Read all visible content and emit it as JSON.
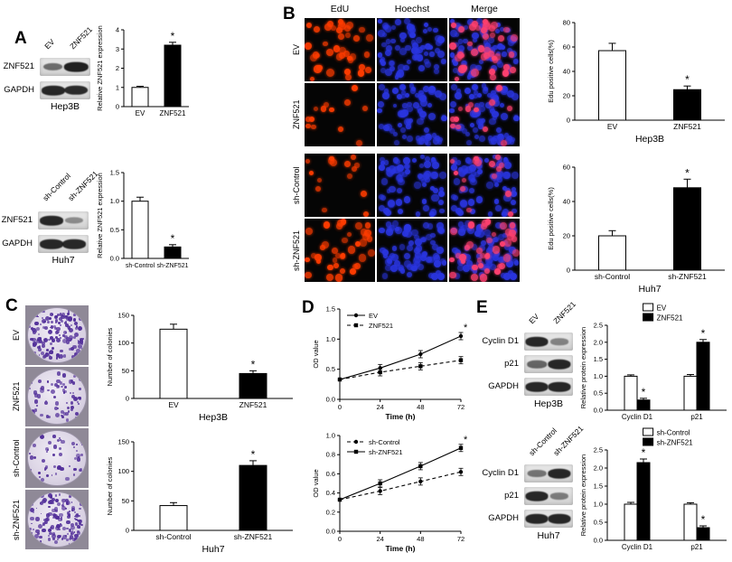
{
  "panelA": {
    "label": "A",
    "groups": [
      {
        "col_labels": [
          "EV",
          "ZNF521"
        ],
        "rows": [
          {
            "label": "ZNF521",
            "bands": [
              0.45,
              0.95
            ]
          },
          {
            "label": "GAPDH",
            "bands": [
              0.9,
              0.88
            ]
          }
        ],
        "cell_line": "Hep3B"
      },
      {
        "col_labels": [
          "sh-Control",
          "sh-ZNF521"
        ],
        "rows": [
          {
            "label": "ZNF521",
            "bands": [
              0.9,
              0.25
            ]
          },
          {
            "label": "GAPDH",
            "bands": [
              0.9,
              0.9
            ]
          }
        ],
        "cell_line": "Huh7"
      }
    ]
  },
  "panelB": {
    "label": "B",
    "col_headers": [
      "EdU",
      "Hoechst",
      "Merge"
    ],
    "edu_color": "#ff3c00",
    "hoechst_color": "#2a35e0",
    "merge_positive_color": "#ff4070",
    "rows": [
      {
        "label": "EV",
        "edu_count": 40,
        "hoechst_count": 70
      },
      {
        "label": "ZNF521",
        "edu_count": 13,
        "hoechst_count": 72
      },
      {
        "label": "sh-Control",
        "edu_count": 15,
        "hoechst_count": 70
      },
      {
        "label": "sh-ZNF521",
        "edu_count": 38,
        "hoechst_count": 74
      }
    ]
  },
  "panelC": {
    "label": "C",
    "colony_color": "#53309a",
    "dishes": [
      {
        "label": "EV",
        "colony_density": 170
      },
      {
        "label": "ZNF521",
        "colony_density": 75
      },
      {
        "label": "sh-Control",
        "colony_density": 55
      },
      {
        "label": "sh-ZNF521",
        "colony_density": 150
      }
    ]
  },
  "panelD": {
    "label": "D"
  },
  "panelE": {
    "label": "E",
    "groups": [
      {
        "col_labels": [
          "EV",
          "ZNF521"
        ],
        "rows": [
          {
            "label": "Cyclin D1",
            "bands": [
              0.9,
              0.3
            ]
          },
          {
            "label": "p21",
            "bands": [
              0.5,
              0.92
            ]
          },
          {
            "label": "GAPDH",
            "bands": [
              0.9,
              0.9
            ]
          }
        ],
        "cell_line": "Hep3B"
      },
      {
        "col_labels": [
          "sh-Control",
          "sh-ZNF521"
        ],
        "rows": [
          {
            "label": "Cyclin D1",
            "bands": [
              0.4,
              0.92
            ]
          },
          {
            "label": "p21",
            "bands": [
              0.9,
              0.35
            ]
          },
          {
            "label": "GAPDH",
            "bands": [
              0.9,
              0.9
            ]
          }
        ],
        "cell_line": "Huh7"
      }
    ]
  },
  "chart_data": [
    {
      "id": "a_top",
      "type": "bar",
      "categories": [
        "EV",
        "ZNF521"
      ],
      "values": [
        1.0,
        3.2
      ],
      "errors": [
        0.06,
        0.15
      ],
      "sig": [
        false,
        true
      ],
      "sig_label": "*",
      "fills": [
        "#ffffff",
        "#000000"
      ],
      "ylabel": "Relative ZNF521 expression",
      "xlabel": "",
      "ylim": [
        0,
        4
      ],
      "yticks": [
        0,
        1,
        2,
        3,
        4
      ],
      "ytick_labels": [
        "0",
        "1",
        "2",
        "3",
        "4"
      ]
    },
    {
      "id": "a_bottom",
      "type": "bar",
      "categories": [
        "sh-Control",
        "sh-ZNF521"
      ],
      "values": [
        1.0,
        0.2
      ],
      "errors": [
        0.07,
        0.04
      ],
      "sig": [
        false,
        true
      ],
      "sig_label": "*",
      "fills": [
        "#ffffff",
        "#000000"
      ],
      "ylabel": "Relative ZNF521 expression",
      "xlabel": "",
      "ylim": [
        0,
        1.5
      ],
      "yticks": [
        0,
        0.5,
        1.0,
        1.5
      ],
      "ytick_labels": [
        "0.0",
        "0.5",
        "1.0",
        "1.5"
      ]
    },
    {
      "id": "b_top",
      "type": "bar",
      "categories": [
        "EV",
        "ZNF521"
      ],
      "values": [
        57,
        25
      ],
      "errors": [
        6,
        3
      ],
      "sig": [
        false,
        true
      ],
      "sig_label": "*",
      "fills": [
        "#ffffff",
        "#000000"
      ],
      "ylabel": "Edu positive cells(%)",
      "xlabel": "Hep3B",
      "ylim": [
        0,
        80
      ],
      "yticks": [
        0,
        20,
        40,
        60,
        80
      ],
      "ytick_labels": [
        "0",
        "20",
        "40",
        "60",
        "80"
      ]
    },
    {
      "id": "b_bottom",
      "type": "bar",
      "categories": [
        "sh-Control",
        "sh-ZNF521"
      ],
      "values": [
        20,
        48
      ],
      "errors": [
        3,
        5
      ],
      "sig": [
        false,
        true
      ],
      "sig_label": "*",
      "fills": [
        "#ffffff",
        "#000000"
      ],
      "ylabel": "Edu positive cells(%)",
      "xlabel": "Huh7",
      "ylim": [
        0,
        60
      ],
      "yticks": [
        0,
        20,
        40,
        60
      ],
      "ytick_labels": [
        "0",
        "20",
        "40",
        "60"
      ]
    },
    {
      "id": "c_top",
      "type": "bar",
      "categories": [
        "EV",
        "ZNF521"
      ],
      "values": [
        125,
        45
      ],
      "errors": [
        9,
        5
      ],
      "sig": [
        false,
        true
      ],
      "sig_label": "*",
      "fills": [
        "#ffffff",
        "#000000"
      ],
      "ylabel": "Number of colonies",
      "xlabel": "Hep3B",
      "ylim": [
        0,
        150
      ],
      "yticks": [
        0,
        50,
        100,
        150
      ],
      "ytick_labels": [
        "0",
        "50",
        "100",
        "150"
      ]
    },
    {
      "id": "c_bottom",
      "type": "bar",
      "categories": [
        "sh-Control",
        "sh-ZNF521"
      ],
      "values": [
        42,
        110
      ],
      "errors": [
        5,
        8
      ],
      "sig": [
        false,
        true
      ],
      "sig_label": "*",
      "fills": [
        "#ffffff",
        "#000000"
      ],
      "ylabel": "Number of colonies",
      "xlabel": "Huh7",
      "ylim": [
        0,
        150
      ],
      "yticks": [
        0,
        50,
        100,
        150
      ],
      "ytick_labels": [
        "0",
        "50",
        "100",
        "150"
      ]
    },
    {
      "id": "d_top",
      "type": "line",
      "x": [
        0,
        24,
        48,
        72
      ],
      "xticks": [
        0,
        24,
        48,
        72
      ],
      "sig_label": "*",
      "series": [
        {
          "name": "EV",
          "values": [
            0.33,
            0.52,
            0.75,
            1.05
          ],
          "dash": false,
          "marker": "circle",
          "sig_at_last": true
        },
        {
          "name": "ZNF521",
          "values": [
            0.33,
            0.45,
            0.55,
            0.65
          ],
          "dash": true,
          "marker": "square",
          "sig_at_last": false
        }
      ],
      "ylabel": "OD value",
      "xlabel": "Time (h)",
      "ylim": [
        0,
        1.5
      ],
      "yticks": [
        0,
        0.5,
        1.0,
        1.5
      ],
      "ytick_labels": [
        "0.0",
        "0.5",
        "1.0",
        "1.5"
      ]
    },
    {
      "id": "d_bottom",
      "type": "line",
      "x": [
        0,
        24,
        48,
        72
      ],
      "xticks": [
        0,
        24,
        48,
        72
      ],
      "sig_label": "*",
      "series": [
        {
          "name": "sh-Control",
          "values": [
            0.33,
            0.42,
            0.52,
            0.62
          ],
          "dash": true,
          "marker": "circle",
          "sig_at_last": false
        },
        {
          "name": "sh-ZNF521",
          "values": [
            0.33,
            0.5,
            0.68,
            0.87
          ],
          "dash": false,
          "marker": "square",
          "sig_at_last": true
        }
      ],
      "ylabel": "OD value",
      "xlabel": "Time (h)",
      "ylim": [
        0,
        1.0
      ],
      "yticks": [
        0,
        0.2,
        0.4,
        0.6,
        0.8,
        1.0
      ],
      "ytick_labels": [
        "0.0",
        "0.2",
        "0.4",
        "0.6",
        "0.8",
        "1.0"
      ]
    },
    {
      "id": "e_top",
      "type": "grouped_bar",
      "categories": [
        "Cyclin D1",
        "p21"
      ],
      "sig_label": "*",
      "series": [
        {
          "name": "EV",
          "values": [
            1.0,
            1.0
          ],
          "errors": [
            0.04,
            0.05
          ],
          "fill": "#ffffff",
          "sig": [
            false,
            false
          ]
        },
        {
          "name": "ZNF521",
          "values": [
            0.3,
            2.0
          ],
          "errors": [
            0.05,
            0.08
          ],
          "fill": "#000000",
          "sig": [
            true,
            true
          ]
        }
      ],
      "ylabel": "Relative protein expression",
      "xlabel": "",
      "ylim": [
        0,
        2.5
      ],
      "yticks": [
        0,
        0.5,
        1.0,
        1.5,
        2.0,
        2.5
      ],
      "ytick_labels": [
        "0.0",
        "0.5",
        "1.0",
        "1.5",
        "2.0",
        "2.5"
      ]
    },
    {
      "id": "e_bottom",
      "type": "grouped_bar",
      "categories": [
        "Cyclin D1",
        "p21"
      ],
      "sig_label": "*",
      "series": [
        {
          "name": "sh-Control",
          "values": [
            1.0,
            1.0
          ],
          "errors": [
            0.05,
            0.04
          ],
          "fill": "#ffffff",
          "sig": [
            false,
            false
          ]
        },
        {
          "name": "sh-ZNF521",
          "values": [
            2.15,
            0.35
          ],
          "errors": [
            0.1,
            0.05
          ],
          "fill": "#000000",
          "sig": [
            true,
            true
          ]
        }
      ],
      "ylabel": "Relative protein expression",
      "xlabel": "",
      "ylim": [
        0,
        2.5
      ],
      "yticks": [
        0,
        0.5,
        1.0,
        1.5,
        2.0,
        2.5
      ],
      "ytick_labels": [
        "0.0",
        "0.5",
        "1.0",
        "1.5",
        "2.0",
        "2.5"
      ]
    }
  ]
}
